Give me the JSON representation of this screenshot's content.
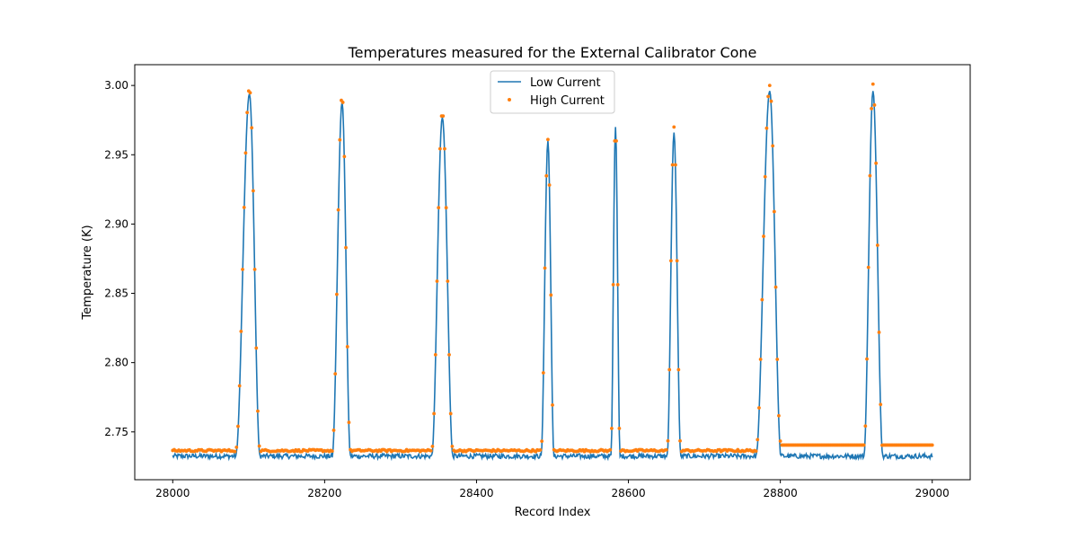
{
  "chart_data": {
    "type": "line",
    "title": "Temperatures measured for the External Calibrator Cone",
    "xlabel": "Record Index",
    "ylabel": "Temperature (K)",
    "xlim": [
      27950,
      29050
    ],
    "ylim": [
      2.7155,
      3.015
    ],
    "x_ticks": [
      28000,
      28200,
      28400,
      28600,
      28800,
      29000
    ],
    "x_tick_labels": [
      "28000",
      "28200",
      "28400",
      "28600",
      "28800",
      "29000"
    ],
    "y_ticks": [
      2.75,
      2.8,
      2.85,
      2.9,
      2.95,
      3.0
    ],
    "y_tick_labels": [
      "2.75",
      "2.80",
      "2.85",
      "2.90",
      "2.95",
      "3.00"
    ],
    "grid": false,
    "legend_position": "top-center",
    "x_range": [
      28000,
      29000
    ],
    "series": [
      {
        "name": "Low Current",
        "style": "line",
        "color": "#1f77b4",
        "baseline": 2.7325,
        "peaks": [
          {
            "x": 28101,
            "peak": 2.994,
            "rise": 18,
            "fall": 14
          },
          {
            "x": 28223,
            "peak": 2.988,
            "rise": 13,
            "fall": 11
          },
          {
            "x": 28355,
            "peak": 2.977,
            "rise": 14,
            "fall": 14
          },
          {
            "x": 28494,
            "peak": 2.96,
            "rise": 9,
            "fall": 8
          },
          {
            "x": 28583,
            "peak": 2.97,
            "rise": 6,
            "fall": 6
          },
          {
            "x": 28660,
            "peak": 2.966,
            "rise": 9,
            "fall": 9
          },
          {
            "x": 28786,
            "peak": 2.996,
            "rise": 18,
            "fall": 15
          },
          {
            "x": 28922,
            "peak": 2.996,
            "rise": 12,
            "fall": 13
          }
        ]
      },
      {
        "name": "High Current",
        "style": "scatter",
        "color": "#ff7f0e",
        "baseline": 2.7365,
        "peaks": [
          {
            "x": 28101,
            "peak": 2.998,
            "rise": 18,
            "fall": 14
          },
          {
            "x": 28223,
            "peak": 2.993,
            "rise": 13,
            "fall": 11
          },
          {
            "x": 28355,
            "peak": 2.981,
            "rise": 14,
            "fall": 14
          },
          {
            "x": 28494,
            "peak": 2.961,
            "rise": 9,
            "fall": 8
          },
          {
            "x": 28583,
            "peak": 2.976,
            "rise": 6,
            "fall": 6
          },
          {
            "x": 28660,
            "peak": 2.97,
            "rise": 9,
            "fall": 9
          },
          {
            "x": 28786,
            "peak": 3.0,
            "rise": 18,
            "fall": 15
          },
          {
            "x": 28922,
            "peak": 3.001,
            "rise": 12,
            "fall": 13
          }
        ]
      }
    ]
  }
}
